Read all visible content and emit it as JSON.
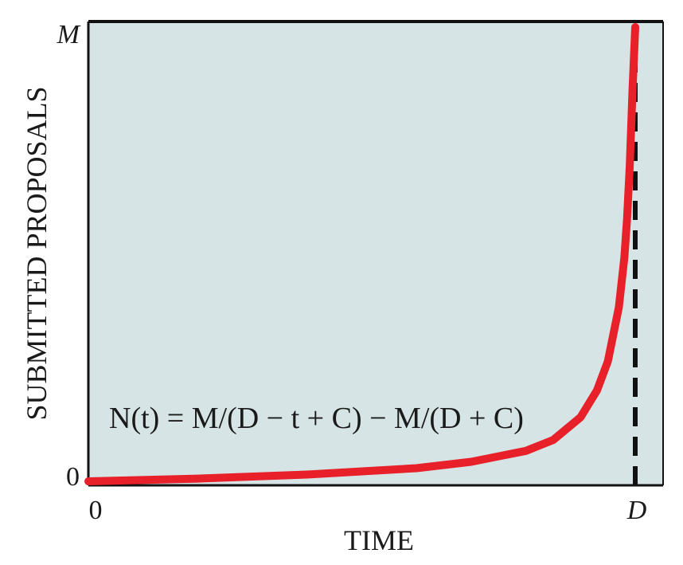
{
  "chart_data": {
    "type": "line",
    "title": "",
    "xlabel": "TIME",
    "ylabel": "SUBMITTED PROPOSALS",
    "x_ticks": [
      "0",
      "D"
    ],
    "y_ticks": [
      "0",
      "M"
    ],
    "annotation": "N(t) = M/(D − t + C) − M/(D + C)",
    "deadline_marker": "D",
    "grid": false,
    "legend": "none",
    "xlim": [
      0,
      1
    ],
    "ylim": [
      0,
      1
    ],
    "series": [
      {
        "x": [
          0,
          0.2,
          0.4,
          0.6,
          0.7,
          0.8,
          0.85,
          0.9,
          0.93,
          0.95,
          0.97,
          0.98,
          0.985,
          0.99,
          0.995,
          1.0
        ],
        "y": [
          0,
          0.006,
          0.015,
          0.029,
          0.043,
          0.067,
          0.091,
          0.141,
          0.2,
          0.264,
          0.383,
          0.492,
          0.577,
          0.694,
          0.861,
          1.0
        ]
      }
    ],
    "colors": {
      "plot_background": "#d6e4e6",
      "curve": "#e8202a",
      "deadline_line": "#111111",
      "frame": "#111111"
    }
  }
}
